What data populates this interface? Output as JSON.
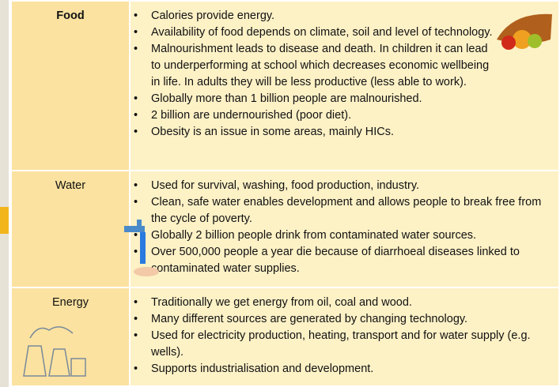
{
  "table": {
    "rows": [
      {
        "label": "Food",
        "items": [
          "Calories provide energy.",
          "Availability of food depends on climate, soil and level of technology.",
          "Malnourishment leads to disease and death. In children it can lead to underperforming at school which decreases economic wellbeing in life. In adults they will be less productive (less able to work).",
          "Globally more than 1 billion people are malnourished.",
          "2 billion are undernourished (poor diet).",
          "Obesity is an issue in some areas, mainly HICs."
        ]
      },
      {
        "label": "Water",
        "items": [
          "Used for survival, washing, food production, industry.",
          "Clean, safe water enables development and allows people to break free from the cycle of poverty.",
          "Globally 2 billion people drink from contaminated water sources.",
          "Over 500,000 people a year die because of diarrhoeal  diseases linked to contaminated water supplies."
        ]
      },
      {
        "label": "Energy",
        "items": [
          "Traditionally we get energy from oil, coal and wood.",
          "Many different sources are generated by changing technology.",
          "Used for electricity production, heating, transport and for water supply (e.g. wells).",
          "Supports industrialisation and development."
        ]
      }
    ]
  }
}
